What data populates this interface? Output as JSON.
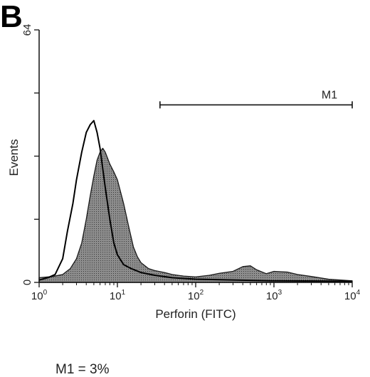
{
  "panel_label": "B",
  "result_text": "M1 = 3%",
  "colors": {
    "axis": "#111111",
    "control_outline": "#000000",
    "stained_fill": "#8c8c8c",
    "stained_stroke": "#1a1a1a"
  },
  "chart_data": {
    "type": "area",
    "title": "",
    "xlabel": "Perforin (FITC)",
    "ylabel": "Events",
    "x_scale": "log",
    "xlim": [
      1,
      10000
    ],
    "ylim": [
      0,
      64
    ],
    "x_ticks": [
      {
        "value": 1,
        "base": "10",
        "exp": "0"
      },
      {
        "value": 10,
        "base": "10",
        "exp": "1"
      },
      {
        "value": 100,
        "base": "10",
        "exp": "2"
      },
      {
        "value": 1000,
        "base": "10",
        "exp": "3"
      },
      {
        "value": 10000,
        "base": "10",
        "exp": "4"
      }
    ],
    "y_ticks": [
      {
        "value": 0,
        "label": "0"
      },
      {
        "value": 64,
        "label": "64"
      }
    ],
    "grid": false,
    "marker": {
      "name": "M1",
      "start": 35,
      "end": 10000,
      "y": 45
    },
    "series": [
      {
        "style": "outline",
        "x": [
          1,
          1.3,
          1.6,
          2,
          2.3,
          2.7,
          3,
          3.5,
          4,
          4.5,
          5,
          5.5,
          6,
          7,
          8,
          9,
          10,
          12,
          15,
          20,
          30,
          50,
          100,
          300,
          1000,
          10000
        ],
        "y": [
          0.6,
          1.2,
          2,
          6,
          13,
          20,
          26,
          33,
          38,
          40,
          41,
          38,
          34,
          24,
          16,
          10,
          7,
          4.5,
          3.5,
          2.5,
          1.8,
          1.2,
          0.8,
          0.6,
          0.4,
          0.3
        ]
      },
      {
        "style": "filled",
        "x": [
          1,
          1.5,
          2,
          2.5,
          3,
          3.5,
          4,
          4.5,
          5,
          5.5,
          6,
          6.5,
          7,
          8,
          9,
          10,
          12,
          14,
          16,
          18,
          20,
          25,
          30,
          40,
          50,
          70,
          100,
          150,
          200,
          300,
          400,
          500,
          600,
          800,
          1000,
          1500,
          2000,
          3000,
          5000,
          10000
        ],
        "y": [
          1.2,
          1.5,
          2,
          3.5,
          6,
          10,
          16,
          22,
          27,
          31,
          33,
          34,
          33,
          30,
          28,
          26,
          20,
          14,
          9,
          6.5,
          5,
          3.5,
          3,
          2.5,
          2,
          1.6,
          1.4,
          1.8,
          2.3,
          2.8,
          4,
          4.2,
          3.2,
          2.2,
          2.8,
          2.6,
          2,
          1.5,
          0.8,
          0.4
        ]
      }
    ]
  }
}
